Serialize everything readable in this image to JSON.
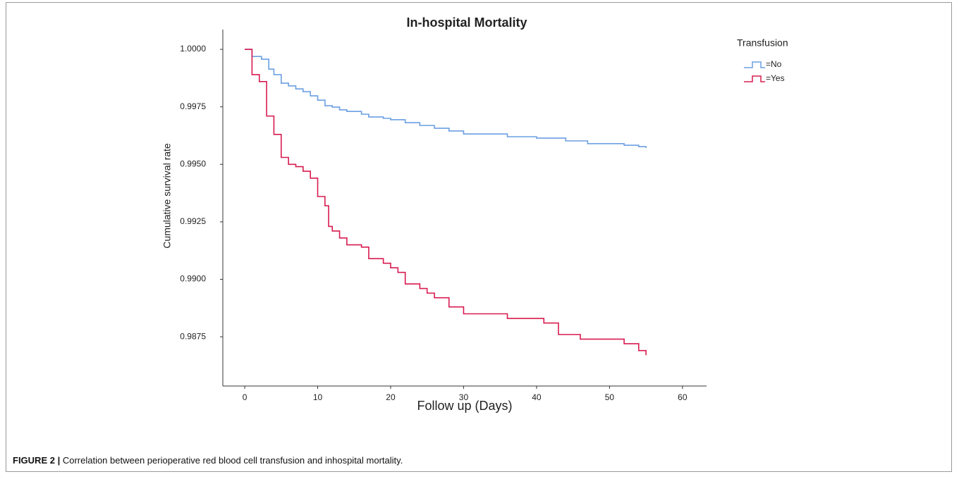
{
  "chart_data": {
    "type": "step",
    "title": "In-hospital Mortality",
    "xlabel": "Follow up (Days)",
    "ylabel": "Cumulative survival rate",
    "legend_title": "Transfusion",
    "legend": "top-right",
    "step": "post",
    "grid": false,
    "xlim": [
      -3,
      63.3
    ],
    "ylim": [
      0.98536,
      1.00086
    ],
    "xticks": [
      0,
      10,
      20,
      30,
      40,
      50,
      60
    ],
    "yticks": [
      {
        "value": 1,
        "label": "1.0000"
      },
      0.9975,
      {
        "value": 0.995,
        "label": "0.9950"
      },
      0.9925,
      {
        "value": 0.99,
        "label": "0.9900"
      },
      0.9875
    ],
    "series": [
      {
        "name": "=No",
        "color": "#6b9fe3",
        "x": [
          0,
          1,
          2.3,
          3.3,
          4,
          5,
          6,
          7,
          8,
          9,
          10,
          11,
          12,
          13,
          14,
          16,
          17,
          19,
          20,
          22,
          24,
          26,
          28,
          30,
          36,
          40,
          44,
          47,
          52,
          54,
          55
        ],
        "values": [
          1.0,
          0.99969,
          0.99957,
          0.99914,
          0.9989,
          0.99853,
          0.99841,
          0.99828,
          0.99816,
          0.99798,
          0.99779,
          0.99755,
          0.99749,
          0.99737,
          0.9973,
          0.99718,
          0.99706,
          0.997,
          0.99694,
          0.99681,
          0.99669,
          0.99657,
          0.99645,
          0.99632,
          0.9962,
          0.99614,
          0.99602,
          0.9959,
          0.99583,
          0.99577,
          0.99571
        ]
      },
      {
        "name": "=Yes",
        "color": "#d81b4f",
        "x": [
          0,
          1,
          2,
          3,
          4,
          5,
          6,
          7,
          8,
          9,
          10,
          11,
          11.5,
          12,
          13,
          14,
          16,
          17,
          19,
          20,
          21,
          22,
          24,
          25,
          26,
          28,
          30,
          36,
          41,
          43,
          46,
          52,
          54,
          55
        ],
        "values": [
          1.0,
          0.9989,
          0.9986,
          0.9971,
          0.9963,
          0.9953,
          0.995,
          0.9949,
          0.9947,
          0.9944,
          0.9936,
          0.9932,
          0.9923,
          0.9921,
          0.9918,
          0.9915,
          0.9914,
          0.9909,
          0.9907,
          0.9905,
          0.9903,
          0.9898,
          0.9896,
          0.9894,
          0.9892,
          0.9888,
          0.9885,
          0.9883,
          0.9881,
          0.9876,
          0.9874,
          0.9872,
          0.9869,
          0.9867
        ]
      }
    ]
  },
  "caption": {
    "label": "FIGURE 2 |",
    "text": "Correlation between perioperative red blood cell transfusion and inhospital mortality."
  }
}
